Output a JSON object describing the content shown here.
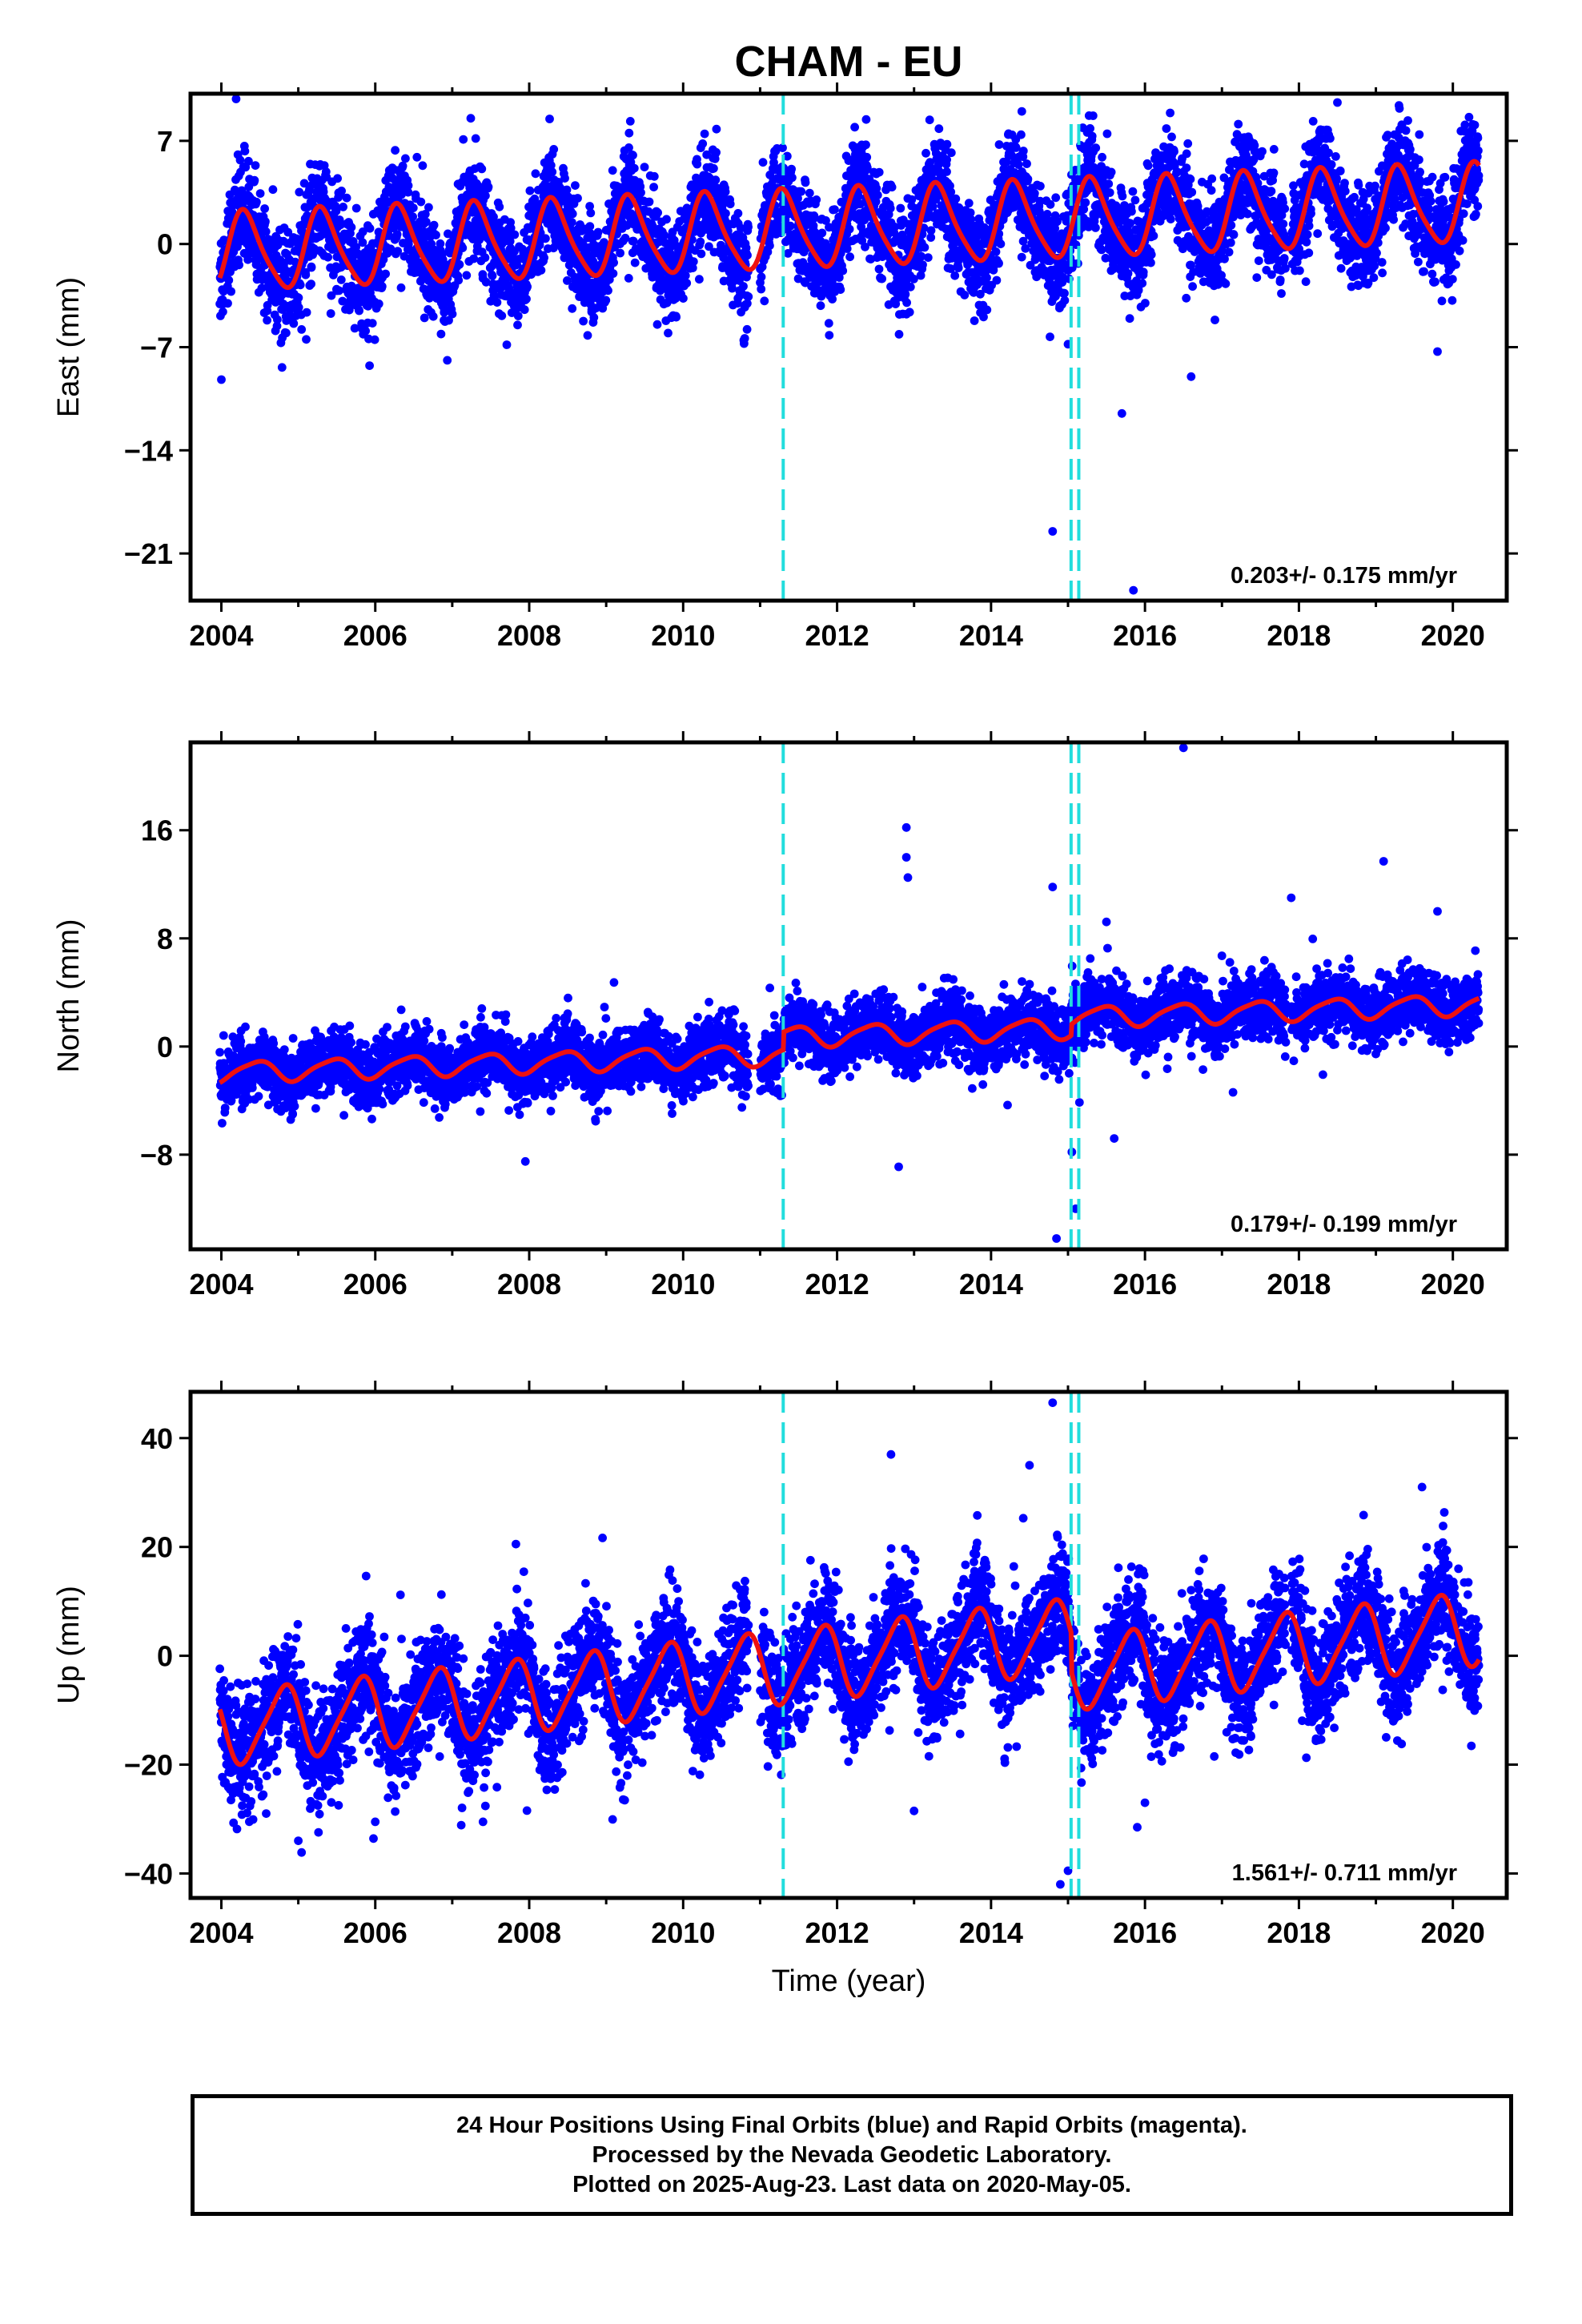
{
  "title": "CHAM - EU",
  "colors": {
    "points": "#0000ff",
    "model": "#ee1111",
    "steps": "#22dddd",
    "frame": "#000000"
  },
  "xlabel": "Time (year)",
  "footer": {
    "line1": "24 Hour Positions Using Final Orbits (blue) and Rapid Orbits (magenta).",
    "line2": "Processed by the Nevada Geodetic Laboratory.",
    "line3": "Plotted on 2025-Aug-23. Last data on 2020-May-05."
  },
  "chart_data": [
    {
      "type": "scatter",
      "panel": "east",
      "ylabel": "East (mm)",
      "xlim": [
        2003.6,
        2020.7
      ],
      "ylim": [
        -24.2,
        10.2
      ],
      "xticks": [
        2004,
        2006,
        2008,
        2010,
        2012,
        2014,
        2016,
        2018,
        2020
      ],
      "yticks": [
        7,
        0,
        -7,
        -14,
        -21
      ],
      "ytick_labels": [
        "7",
        "0",
        "−7",
        "−14",
        "−21"
      ],
      "rate_label": "0.203+/- 0.175 mm/yr",
      "data_start": 2003.98,
      "data_end": 2020.34,
      "trend": {
        "offset": -0.6,
        "rate": 0.203,
        "annual_amp": 2.6,
        "annual_phase": 0.06,
        "semiannual_amp": 0.45,
        "semiannual_phase": 0.1
      },
      "scatter": 1.7,
      "steps": [
        {
          "at": 2015.04,
          "shift": 0.0
        }
      ],
      "step_lines": [
        2011.3,
        2015.04,
        2015.14
      ],
      "outliers": [
        [
          2004.0,
          -9.2
        ],
        [
          2015.7,
          -11.5
        ],
        [
          2014.8,
          -19.5
        ],
        [
          2015.85,
          -23.5
        ],
        [
          2018.5,
          9.6
        ],
        [
          2019.3,
          9.4
        ],
        [
          2014.4,
          9.0
        ],
        [
          2016.6,
          -9.0
        ],
        [
          2019.8,
          -7.3
        ],
        [
          2010.8,
          -6.4
        ],
        [
          2015.0,
          -6.8
        ]
      ]
    },
    {
      "type": "scatter",
      "panel": "north",
      "ylabel": "North (mm)",
      "xlim": [
        2003.6,
        2020.7
      ],
      "ylim": [
        -15,
        22.5
      ],
      "xticks": [
        2004,
        2006,
        2008,
        2010,
        2012,
        2014,
        2016,
        2018,
        2020
      ],
      "yticks": [
        16,
        8,
        0,
        -8
      ],
      "ytick_labels": [
        "16",
        "8",
        "0",
        "−8"
      ],
      "rate_label": "0.179+/- 0.199 mm/yr",
      "data_start": 2003.98,
      "data_end": 2020.34,
      "trend": {
        "offset": -1.9,
        "rate": 0.179,
        "annual_amp": 0.75,
        "annual_phase": 0.2,
        "semiannual_amp": 0.15,
        "semiannual_phase": 0.0
      },
      "scatter": 1.2,
      "steps": [
        {
          "at": 2011.3,
          "shift": 1.3
        },
        {
          "at": 2015.04,
          "shift": 0.8
        }
      ],
      "step_lines": [
        2011.3,
        2015.04,
        2015.14
      ],
      "outliers": [
        [
          2012.9,
          16.2
        ],
        [
          2012.9,
          14.0
        ],
        [
          2012.92,
          12.5
        ],
        [
          2016.5,
          22.1
        ],
        [
          2019.1,
          13.7
        ],
        [
          2017.9,
          11.0
        ],
        [
          2014.8,
          11.8
        ],
        [
          2019.8,
          10.0
        ],
        [
          2007.95,
          -8.5
        ],
        [
          2012.8,
          -8.9
        ],
        [
          2014.85,
          -14.2
        ],
        [
          2015.1,
          -12.0
        ],
        [
          2015.6,
          -6.8
        ],
        [
          2015.05,
          -7.8
        ]
      ]
    },
    {
      "type": "scatter",
      "panel": "up",
      "ylabel": "Up (mm)",
      "xlim": [
        2003.6,
        2020.7
      ],
      "ylim": [
        -44.5,
        48.5
      ],
      "xticks": [
        2004,
        2006,
        2008,
        2010,
        2012,
        2014,
        2016,
        2018,
        2020
      ],
      "yticks": [
        40,
        20,
        0,
        -20,
        -40
      ],
      "ytick_labels": [
        "40",
        "20",
        "0",
        "−20",
        "−40"
      ],
      "rate_label": "1.561+/- 0.711 mm/yr",
      "data_start": 2003.98,
      "data_end": 2020.34,
      "trend": {
        "offset": -13.5,
        "rate": 1.561,
        "annual_amp": 6.5,
        "annual_phase": 0.55,
        "semiannual_amp": 1.2,
        "semiannual_phase": 0.3
      },
      "scatter": 5.2,
      "steps": [
        {
          "at": 2015.04,
          "shift": -7.0
        }
      ],
      "step_lines": [
        2011.3,
        2015.04,
        2015.14
      ],
      "outliers": [
        [
          2014.8,
          46.5
        ],
        [
          2012.7,
          37.0
        ],
        [
          2014.5,
          35.0
        ],
        [
          2005.0,
          -34.0
        ],
        [
          2006.0,
          -30.5
        ],
        [
          2007.4,
          -30.5
        ],
        [
          2013.0,
          -28.5
        ],
        [
          2015.9,
          -31.5
        ],
        [
          2016.0,
          -27.0
        ],
        [
          2014.9,
          -42.0
        ],
        [
          2015.0,
          -39.5
        ],
        [
          2016.9,
          -18.5
        ],
        [
          2019.6,
          31.0
        ]
      ]
    }
  ]
}
